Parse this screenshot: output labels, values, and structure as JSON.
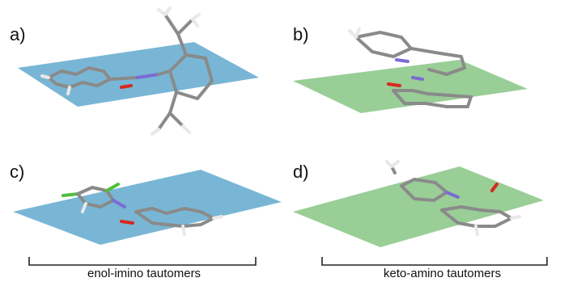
{
  "panels": [
    {
      "label": "a)",
      "plane_color": "#6aaed0"
    },
    {
      "label": "b)",
      "plane_color": "#8ec98b"
    },
    {
      "label": "c)",
      "plane_color": "#6aaed0"
    },
    {
      "label": "d)",
      "plane_color": "#8ec98b"
    }
  ],
  "groups": {
    "left": "enol-imino tautomers",
    "right": "keto-amino tautomers"
  },
  "atom_colors": {
    "carbon": "#8a8a8a",
    "hydrogen": "#e8e8e8",
    "oxygen": "#d42a1e",
    "nitrogen": "#7b6bd6",
    "chlorine": "#4fbf3c"
  }
}
